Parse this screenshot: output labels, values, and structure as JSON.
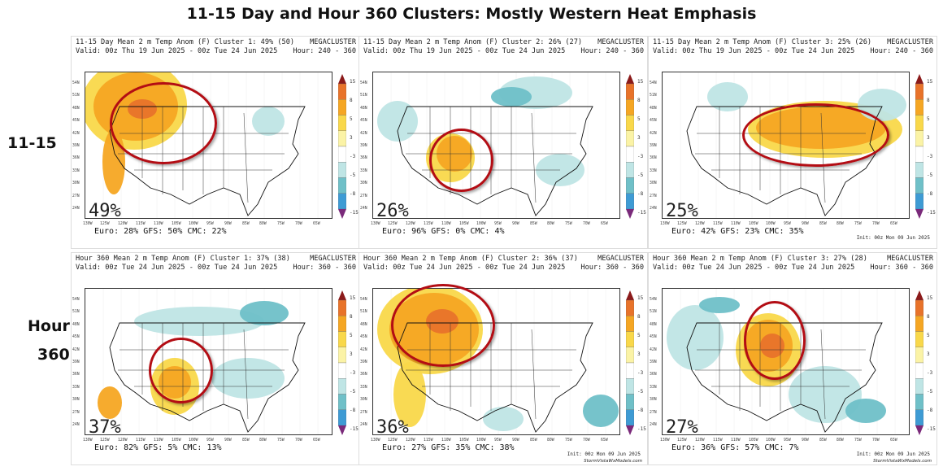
{
  "title": "11-15 Day and Hour 360 Clusters: Mostly Western Heat Emphasis",
  "row_labels": {
    "row1": "11-15",
    "row2_line1": "Hour",
    "row2_line2": "360"
  },
  "colorbar": {
    "ticks": [
      "15",
      "8",
      "5",
      "3",
      "-3",
      "-5",
      "-8",
      "-15"
    ],
    "colors": [
      "#8b1a1a",
      "#e8732a",
      "#f5a623",
      "#f9d84a",
      "#fbf3a6",
      "#ffffff",
      "#bfe5e5",
      "#6fc0c8",
      "#3e9bd4",
      "#1468b0"
    ]
  },
  "lat_labels": [
    "54N",
    "51N",
    "48N",
    "45N",
    "42N",
    "39N",
    "36N",
    "33N",
    "30N",
    "27N",
    "24N"
  ],
  "lon_labels": [
    "130W",
    "125W",
    "120W",
    "115W",
    "110W",
    "105W",
    "100W",
    "95W",
    "90W",
    "85W",
    "80W",
    "75W",
    "70W",
    "65W"
  ],
  "panels": [
    {
      "header_left_1": "11-15 Day Mean 2 m Temp Anom (F) Cluster 1: 49% (50)",
      "header_left_2": "Valid: 00z Thu 19 Jun 2025 - 00z Tue 24 Jun 2025",
      "header_right_1": "MEGACLUSTER",
      "header_right_2": "Hour: 240 - 360",
      "percent": "49%",
      "models": "Euro: 28% GFS: 50% CMC: 22%",
      "init": "",
      "credit": ""
    },
    {
      "header_left_1": "11-15 Day Mean 2 m Temp Anom (F) Cluster 2: 26% (27)",
      "header_left_2": "Valid: 00z Thu 19 Jun 2025 - 00z Tue 24 Jun 2025",
      "header_right_1": "MEGACLUSTER",
      "header_right_2": "Hour: 240 - 360",
      "percent": "26%",
      "models": "Euro: 96% GFS: 0% CMC: 4%",
      "init": "",
      "credit": ""
    },
    {
      "header_left_1": "11-15 Day Mean 2 m Temp Anom (F) Cluster 3: 25% (26)",
      "header_left_2": "Valid: 00z Thu 19 Jun 2025 - 00z Tue 24 Jun 2025",
      "header_right_1": "MEGACLUSTER",
      "header_right_2": "Hour: 240 - 360",
      "percent": "25%",
      "models": "Euro: 42% GFS: 23% CMC: 35%",
      "init": "Init: 00z Mon 09 Jun 2025",
      "credit": ""
    },
    {
      "header_left_1": "Hour 360 Mean 2 m Temp Anom (F) Cluster 1: 37% (38)",
      "header_left_2": "Valid: 00z Tue 24 Jun 2025 - 00z Tue 24 Jun 2025",
      "header_right_1": "MEGACLUSTER",
      "header_right_2": "Hour: 360 - 360",
      "percent": "37%",
      "models": "Euro: 82% GFS: 5% CMC: 13%",
      "init": "",
      "credit": ""
    },
    {
      "header_left_1": "Hour 360 Mean 2 m Temp Anom (F) Cluster 2: 36% (37)",
      "header_left_2": "Valid: 00z Tue 24 Jun 2025 - 00z Tue 24 Jun 2025",
      "header_right_1": "MEGACLUSTER",
      "header_right_2": "Hour: 360 - 360",
      "percent": "36%",
      "models": "Euro: 27% GFS: 35% CMC: 38%",
      "init": "Init: 00z Mon 09 Jun 2025",
      "credit": "StormVistaWxModels.com"
    },
    {
      "header_left_1": "Hour 360 Mean 2 m Temp Anom (F) Cluster 3: 27% (28)",
      "header_left_2": "Valid: 00z Tue 24 Jun 2025 - 00z Tue 24 Jun 2025",
      "header_right_1": "MEGACLUSTER",
      "header_right_2": "Hour: 360 - 360",
      "percent": "27%",
      "models": "Euro: 36% GFS: 57% CMC: 7%",
      "init": "Init: 00z Mon 09 Jun 2025",
      "credit": "StormVistaWxModels.com"
    }
  ]
}
